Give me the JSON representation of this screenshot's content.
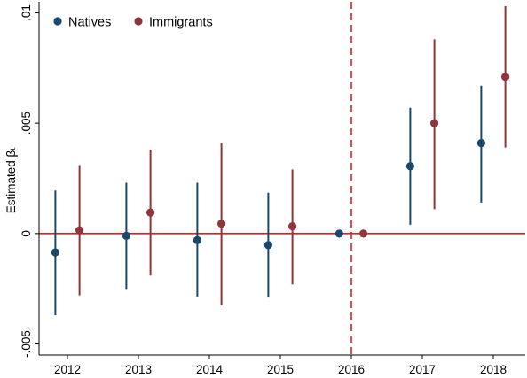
{
  "chart_data": {
    "type": "scatter",
    "subtype": "coefficient-plot-with-confidence-intervals",
    "ylabel": "Estimated βₜ",
    "xlabel": "",
    "x": [
      2012,
      2013,
      2014,
      2015,
      2016,
      2017,
      2018
    ],
    "xticklabels": [
      "2012",
      "2013",
      "2014",
      "2015",
      "2016",
      "2017",
      "2018"
    ],
    "ylim": [
      -0.0055,
      0.0105
    ],
    "yticks": [
      -0.005,
      0,
      0.005,
      0.01
    ],
    "yticklabels": [
      "-.005",
      "0",
      ".005",
      ".01"
    ],
    "grid": false,
    "legend_position": "top-left",
    "reference_lines": {
      "horizontal_y": 0,
      "horizontal_color": "#e8191f",
      "vertical_x": 2016,
      "vertical_color": "#e8191f",
      "vertical_style": "dashed"
    },
    "series": [
      {
        "name": "Natives",
        "color": "#1a476f",
        "offset": -0.17,
        "points": [
          {
            "x": 2012,
            "y": -0.00085,
            "lo": -0.0037,
            "hi": 0.00195
          },
          {
            "x": 2013,
            "y": -0.0001,
            "lo": -0.00255,
            "hi": 0.0023
          },
          {
            "x": 2014,
            "y": -0.0003,
            "lo": -0.00285,
            "hi": 0.0023
          },
          {
            "x": 2015,
            "y": -0.00052,
            "lo": -0.0029,
            "hi": 0.00185
          },
          {
            "x": 2016,
            "y": 0.0,
            "lo": 0.0,
            "hi": 0.0
          },
          {
            "x": 2017,
            "y": 0.00305,
            "lo": 0.0004,
            "hi": 0.0057
          },
          {
            "x": 2018,
            "y": 0.0041,
            "lo": 0.0014,
            "hi": 0.0067
          }
        ]
      },
      {
        "name": "Immigrants",
        "color": "#90353b",
        "offset": 0.17,
        "points": [
          {
            "x": 2012,
            "y": 0.00015,
            "lo": -0.0028,
            "hi": 0.0031
          },
          {
            "x": 2013,
            "y": 0.00095,
            "lo": -0.0019,
            "hi": 0.0038
          },
          {
            "x": 2014,
            "y": 0.00045,
            "lo": -0.00325,
            "hi": 0.0041
          },
          {
            "x": 2015,
            "y": 0.00033,
            "lo": -0.0023,
            "hi": 0.0029
          },
          {
            "x": 2016,
            "y": 0.0,
            "lo": 0.0,
            "hi": 0.0
          },
          {
            "x": 2017,
            "y": 0.005,
            "lo": 0.0011,
            "hi": 0.0088
          },
          {
            "x": 2018,
            "y": 0.0071,
            "lo": 0.0039,
            "hi": 0.0103
          }
        ]
      }
    ]
  }
}
